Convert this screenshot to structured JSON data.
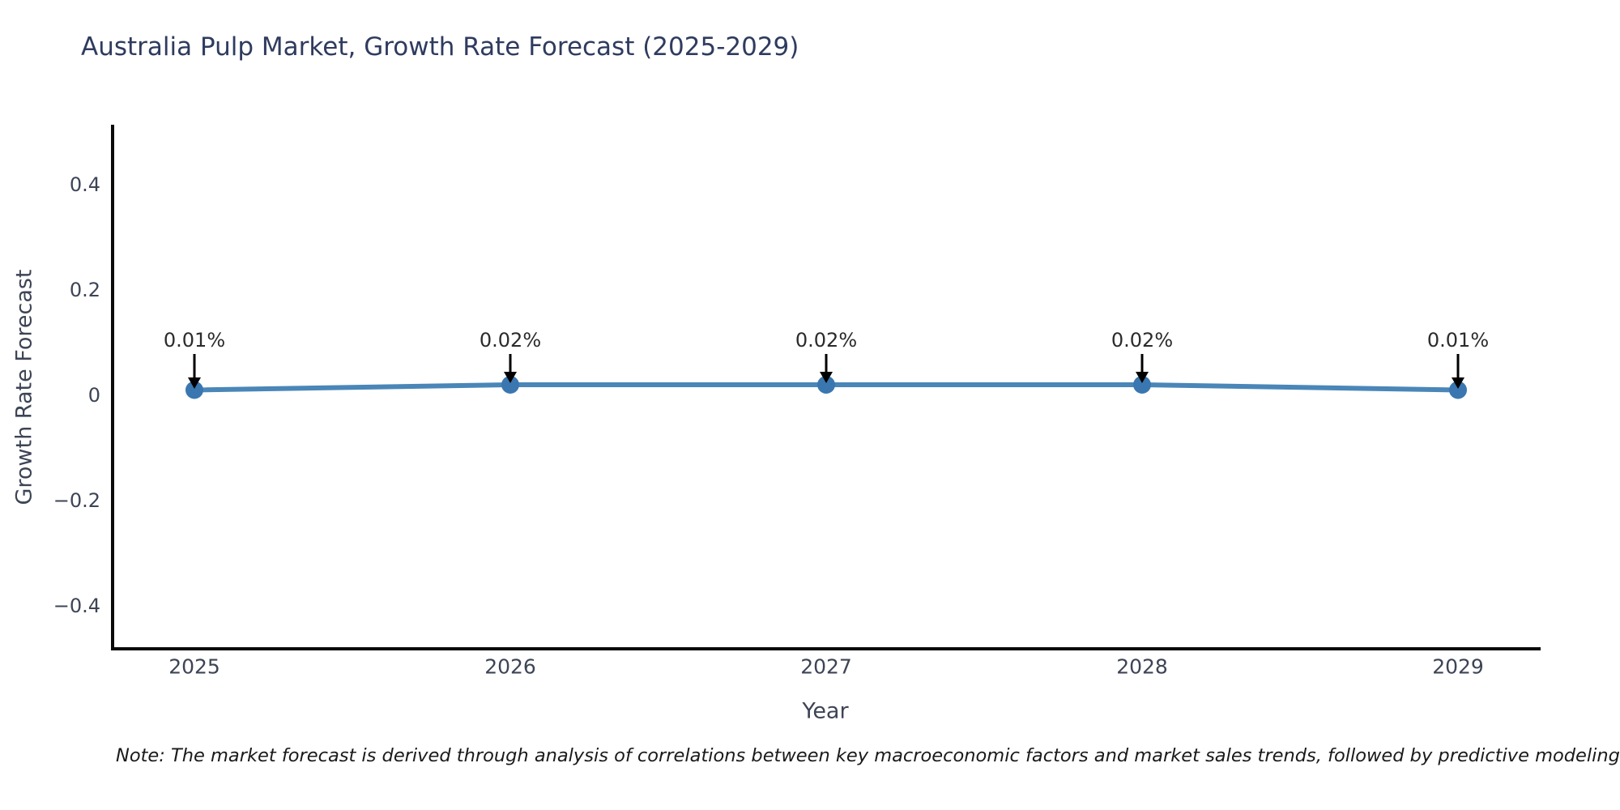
{
  "title": "Australia Pulp Market, Growth Rate Forecast (2025-2029)",
  "note": "Note: The market forecast is derived through analysis of correlations between key macroeconomic factors and market sales trends, followed by predictive modeling to project future sales",
  "chart_data": {
    "type": "line",
    "title": "Australia Pulp Market, Growth Rate Forecast (2025-2029)",
    "xlabel": "Year",
    "ylabel": "Growth Rate Forecast",
    "x": [
      2025,
      2026,
      2027,
      2028,
      2029
    ],
    "xtick_labels": [
      "2025",
      "2026",
      "2027",
      "2028",
      "2029"
    ],
    "values": [
      0.01,
      0.02,
      0.02,
      0.02,
      0.01
    ],
    "point_labels": [
      "0.01%",
      "0.02%",
      "0.02%",
      "0.02%",
      "0.01%"
    ],
    "yticks": [
      0.4,
      0.2,
      0,
      -0.2,
      -0.4
    ],
    "ytick_labels": [
      "0.4",
      "0.2",
      "0",
      "−0.2",
      "−0.4"
    ],
    "ylim": [
      -0.48,
      0.51
    ],
    "grid": false,
    "legend": null,
    "annotation_style": "down-arrow",
    "colors": {
      "line": "#4a86b8",
      "marker": "#3a77b0",
      "arrow": "#000000",
      "title_text": "#2f3b5f",
      "axis_text": "#3d4455",
      "spine": "#0a0a0a",
      "note_text": "#1a1a1a"
    }
  }
}
